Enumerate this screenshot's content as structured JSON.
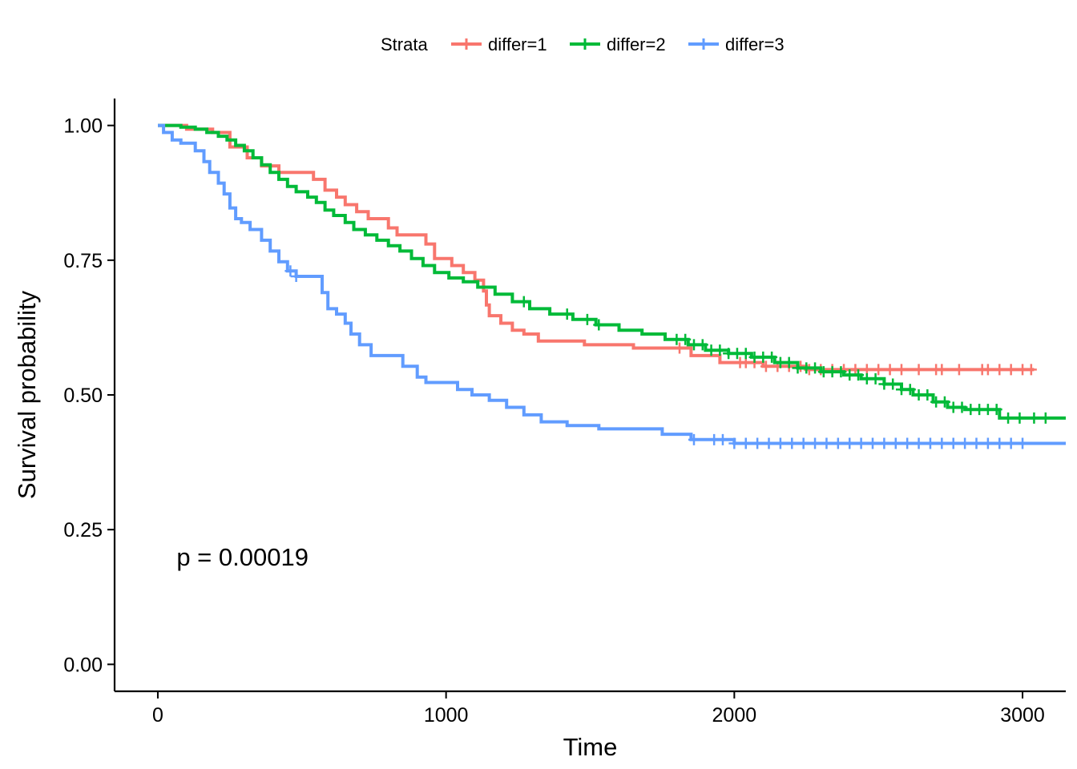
{
  "chart_data": {
    "type": "line",
    "step": true,
    "title": "",
    "xlabel": "Time",
    "ylabel": "Survival probability",
    "xlim": [
      -150,
      3150
    ],
    "ylim": [
      -0.05,
      1.05
    ],
    "x_ticks": [
      0,
      1000,
      2000,
      3000
    ],
    "x_tick_labels": [
      "0",
      "1000",
      "2000",
      "3000"
    ],
    "y_ticks": [
      0,
      0.25,
      0.5,
      0.75,
      1.0
    ],
    "y_tick_labels": [
      "0.00",
      "0.25",
      "0.50",
      "0.75",
      "1.00"
    ],
    "grid": false,
    "legend": {
      "title": "Strata",
      "position": "top"
    },
    "annotation": {
      "text": "p = 0.00019",
      "x": 65,
      "y": 0.2
    },
    "series": [
      {
        "name": "differ=1",
        "color": "#F8766D",
        "points": [
          [
            0,
            1.0
          ],
          [
            100,
            1.0
          ],
          [
            100,
            0.993
          ],
          [
            190,
            0.993
          ],
          [
            190,
            0.987
          ],
          [
            250,
            0.987
          ],
          [
            250,
            0.96
          ],
          [
            310,
            0.96
          ],
          [
            310,
            0.94
          ],
          [
            360,
            0.94
          ],
          [
            360,
            0.925
          ],
          [
            420,
            0.925
          ],
          [
            420,
            0.913
          ],
          [
            540,
            0.913
          ],
          [
            540,
            0.9
          ],
          [
            580,
            0.9
          ],
          [
            580,
            0.88
          ],
          [
            620,
            0.88
          ],
          [
            620,
            0.867
          ],
          [
            650,
            0.867
          ],
          [
            650,
            0.853
          ],
          [
            690,
            0.853
          ],
          [
            690,
            0.84
          ],
          [
            730,
            0.84
          ],
          [
            730,
            0.827
          ],
          [
            800,
            0.827
          ],
          [
            800,
            0.81
          ],
          [
            830,
            0.81
          ],
          [
            830,
            0.797
          ],
          [
            930,
            0.797
          ],
          [
            930,
            0.78
          ],
          [
            960,
            0.78
          ],
          [
            960,
            0.753
          ],
          [
            1020,
            0.753
          ],
          [
            1020,
            0.74
          ],
          [
            1060,
            0.74
          ],
          [
            1060,
            0.727
          ],
          [
            1100,
            0.727
          ],
          [
            1100,
            0.713
          ],
          [
            1130,
            0.713
          ],
          [
            1130,
            0.693
          ],
          [
            1140,
            0.693
          ],
          [
            1140,
            0.667
          ],
          [
            1150,
            0.667
          ],
          [
            1150,
            0.647
          ],
          [
            1190,
            0.647
          ],
          [
            1190,
            0.633
          ],
          [
            1230,
            0.633
          ],
          [
            1230,
            0.62
          ],
          [
            1270,
            0.62
          ],
          [
            1270,
            0.613
          ],
          [
            1320,
            0.613
          ],
          [
            1320,
            0.6
          ],
          [
            1480,
            0.6
          ],
          [
            1480,
            0.593
          ],
          [
            1650,
            0.593
          ],
          [
            1650,
            0.587
          ],
          [
            1850,
            0.587
          ],
          [
            1850,
            0.573
          ],
          [
            1950,
            0.573
          ],
          [
            1950,
            0.56
          ],
          [
            2100,
            0.56
          ],
          [
            2100,
            0.553
          ],
          [
            2250,
            0.553
          ],
          [
            2250,
            0.547
          ],
          [
            3040,
            0.547
          ]
        ],
        "censor_x": [
          1810,
          2020,
          2040,
          2070,
          2110,
          2150,
          2190,
          2230,
          2260,
          2300,
          2340,
          2380,
          2420,
          2460,
          2500,
          2540,
          2580,
          2640,
          2700,
          2720,
          2780,
          2860,
          2880,
          2920,
          2960,
          3000,
          3030
        ]
      },
      {
        "name": "differ=2",
        "color": "#00BA38",
        "points": [
          [
            0,
            1.0
          ],
          [
            80,
            1.0
          ],
          [
            80,
            0.997
          ],
          [
            130,
            0.997
          ],
          [
            130,
            0.993
          ],
          [
            170,
            0.993
          ],
          [
            170,
            0.987
          ],
          [
            210,
            0.987
          ],
          [
            210,
            0.98
          ],
          [
            240,
            0.98
          ],
          [
            240,
            0.973
          ],
          [
            270,
            0.973
          ],
          [
            270,
            0.963
          ],
          [
            300,
            0.963
          ],
          [
            300,
            0.953
          ],
          [
            330,
            0.953
          ],
          [
            330,
            0.94
          ],
          [
            360,
            0.94
          ],
          [
            360,
            0.927
          ],
          [
            390,
            0.927
          ],
          [
            390,
            0.913
          ],
          [
            420,
            0.913
          ],
          [
            420,
            0.9
          ],
          [
            450,
            0.9
          ],
          [
            450,
            0.887
          ],
          [
            480,
            0.887
          ],
          [
            480,
            0.877
          ],
          [
            520,
            0.877
          ],
          [
            520,
            0.867
          ],
          [
            550,
            0.867
          ],
          [
            550,
            0.857
          ],
          [
            580,
            0.857
          ],
          [
            580,
            0.843
          ],
          [
            610,
            0.843
          ],
          [
            610,
            0.833
          ],
          [
            650,
            0.833
          ],
          [
            650,
            0.82
          ],
          [
            680,
            0.82
          ],
          [
            680,
            0.807
          ],
          [
            720,
            0.807
          ],
          [
            720,
            0.797
          ],
          [
            760,
            0.797
          ],
          [
            760,
            0.787
          ],
          [
            800,
            0.787
          ],
          [
            800,
            0.777
          ],
          [
            840,
            0.777
          ],
          [
            840,
            0.767
          ],
          [
            880,
            0.767
          ],
          [
            880,
            0.753
          ],
          [
            920,
            0.753
          ],
          [
            920,
            0.74
          ],
          [
            960,
            0.74
          ],
          [
            960,
            0.727
          ],
          [
            1010,
            0.727
          ],
          [
            1010,
            0.717
          ],
          [
            1060,
            0.717
          ],
          [
            1060,
            0.71
          ],
          [
            1110,
            0.71
          ],
          [
            1110,
            0.7
          ],
          [
            1170,
            0.7
          ],
          [
            1170,
            0.687
          ],
          [
            1230,
            0.687
          ],
          [
            1230,
            0.673
          ],
          [
            1290,
            0.673
          ],
          [
            1290,
            0.66
          ],
          [
            1360,
            0.66
          ],
          [
            1360,
            0.65
          ],
          [
            1440,
            0.65
          ],
          [
            1440,
            0.64
          ],
          [
            1520,
            0.64
          ],
          [
            1520,
            0.63
          ],
          [
            1600,
            0.63
          ],
          [
            1600,
            0.62
          ],
          [
            1680,
            0.62
          ],
          [
            1680,
            0.613
          ],
          [
            1760,
            0.613
          ],
          [
            1760,
            0.603
          ],
          [
            1840,
            0.603
          ],
          [
            1840,
            0.593
          ],
          [
            1900,
            0.593
          ],
          [
            1900,
            0.583
          ],
          [
            1980,
            0.583
          ],
          [
            1980,
            0.577
          ],
          [
            2060,
            0.577
          ],
          [
            2060,
            0.57
          ],
          [
            2140,
            0.57
          ],
          [
            2140,
            0.56
          ],
          [
            2220,
            0.56
          ],
          [
            2220,
            0.55
          ],
          [
            2300,
            0.55
          ],
          [
            2300,
            0.543
          ],
          [
            2380,
            0.543
          ],
          [
            2380,
            0.537
          ],
          [
            2440,
            0.537
          ],
          [
            2440,
            0.53
          ],
          [
            2520,
            0.53
          ],
          [
            2520,
            0.52
          ],
          [
            2580,
            0.52
          ],
          [
            2580,
            0.51
          ],
          [
            2620,
            0.51
          ],
          [
            2620,
            0.5
          ],
          [
            2690,
            0.5
          ],
          [
            2690,
            0.487
          ],
          [
            2740,
            0.487
          ],
          [
            2740,
            0.477
          ],
          [
            2800,
            0.477
          ],
          [
            2800,
            0.473
          ],
          [
            2920,
            0.473
          ],
          [
            2920,
            0.457
          ],
          [
            3150,
            0.457
          ]
        ],
        "censor_x": [
          1270,
          1420,
          1490,
          1530,
          1800,
          1830,
          1860,
          1890,
          1920,
          1950,
          1980,
          2010,
          2040,
          2070,
          2100,
          2130,
          2160,
          2190,
          2220,
          2250,
          2280,
          2310,
          2340,
          2370,
          2400,
          2430,
          2460,
          2490,
          2520,
          2550,
          2580,
          2610,
          2640,
          2670,
          2700,
          2730,
          2760,
          2790,
          2820,
          2850,
          2880,
          2910,
          2950,
          2990,
          3040,
          3080
        ]
      },
      {
        "name": "differ=3",
        "color": "#619CFF",
        "points": [
          [
            0,
            1.0
          ],
          [
            20,
            1.0
          ],
          [
            20,
            0.987
          ],
          [
            50,
            0.987
          ],
          [
            50,
            0.973
          ],
          [
            80,
            0.973
          ],
          [
            80,
            0.967
          ],
          [
            130,
            0.967
          ],
          [
            130,
            0.953
          ],
          [
            160,
            0.953
          ],
          [
            160,
            0.933
          ],
          [
            180,
            0.933
          ],
          [
            180,
            0.913
          ],
          [
            210,
            0.913
          ],
          [
            210,
            0.893
          ],
          [
            230,
            0.893
          ],
          [
            230,
            0.873
          ],
          [
            250,
            0.873
          ],
          [
            250,
            0.847
          ],
          [
            270,
            0.847
          ],
          [
            270,
            0.827
          ],
          [
            290,
            0.827
          ],
          [
            290,
            0.82
          ],
          [
            320,
            0.82
          ],
          [
            320,
            0.807
          ],
          [
            360,
            0.807
          ],
          [
            360,
            0.787
          ],
          [
            390,
            0.787
          ],
          [
            390,
            0.767
          ],
          [
            420,
            0.767
          ],
          [
            420,
            0.747
          ],
          [
            450,
            0.747
          ],
          [
            450,
            0.73
          ],
          [
            480,
            0.73
          ],
          [
            480,
            0.72
          ],
          [
            570,
            0.72
          ],
          [
            570,
            0.69
          ],
          [
            590,
            0.69
          ],
          [
            590,
            0.66
          ],
          [
            620,
            0.66
          ],
          [
            620,
            0.65
          ],
          [
            650,
            0.65
          ],
          [
            650,
            0.633
          ],
          [
            670,
            0.633
          ],
          [
            670,
            0.613
          ],
          [
            700,
            0.613
          ],
          [
            700,
            0.593
          ],
          [
            740,
            0.593
          ],
          [
            740,
            0.573
          ],
          [
            850,
            0.573
          ],
          [
            850,
            0.553
          ],
          [
            900,
            0.553
          ],
          [
            900,
            0.533
          ],
          [
            930,
            0.533
          ],
          [
            930,
            0.523
          ],
          [
            1040,
            0.523
          ],
          [
            1040,
            0.51
          ],
          [
            1090,
            0.51
          ],
          [
            1090,
            0.5
          ],
          [
            1150,
            0.5
          ],
          [
            1150,
            0.49
          ],
          [
            1210,
            0.49
          ],
          [
            1210,
            0.477
          ],
          [
            1270,
            0.477
          ],
          [
            1270,
            0.463
          ],
          [
            1330,
            0.463
          ],
          [
            1330,
            0.45
          ],
          [
            1420,
            0.45
          ],
          [
            1420,
            0.443
          ],
          [
            1530,
            0.443
          ],
          [
            1530,
            0.437
          ],
          [
            1750,
            0.437
          ],
          [
            1750,
            0.427
          ],
          [
            1850,
            0.427
          ],
          [
            1850,
            0.417
          ],
          [
            2000,
            0.417
          ],
          [
            2000,
            0.41
          ],
          [
            3150,
            0.41
          ]
        ],
        "censor_x": [
          460,
          480,
          1860,
          1930,
          1960,
          2000,
          2040,
          2080,
          2120,
          2160,
          2200,
          2240,
          2280,
          2320,
          2360,
          2400,
          2440,
          2480,
          2520,
          2560,
          2600,
          2640,
          2680,
          2720,
          2760,
          2800,
          2840,
          2880,
          2920,
          2960,
          3000
        ]
      }
    ]
  }
}
